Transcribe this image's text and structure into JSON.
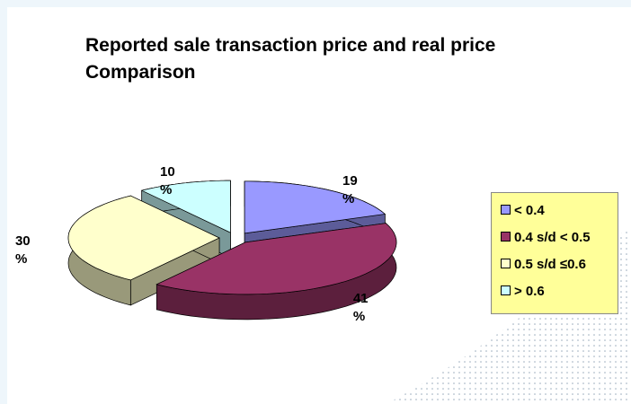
{
  "chart_data": {
    "type": "pie3d",
    "title": "Reported sale transaction price  and real price Comparison",
    "categories": [
      "< 0.4",
      "0.4 s/d < 0.5",
      "0.5 s/d ≤0.6",
      "> 0.6"
    ],
    "values": [
      19,
      41,
      30,
      10
    ],
    "value_labels": [
      "19 %",
      "41 %",
      "30 %",
      "10 %"
    ],
    "colors": [
      "#9999ff",
      "#993366",
      "#ffffcc",
      "#ccffff"
    ],
    "legend": "right"
  }
}
